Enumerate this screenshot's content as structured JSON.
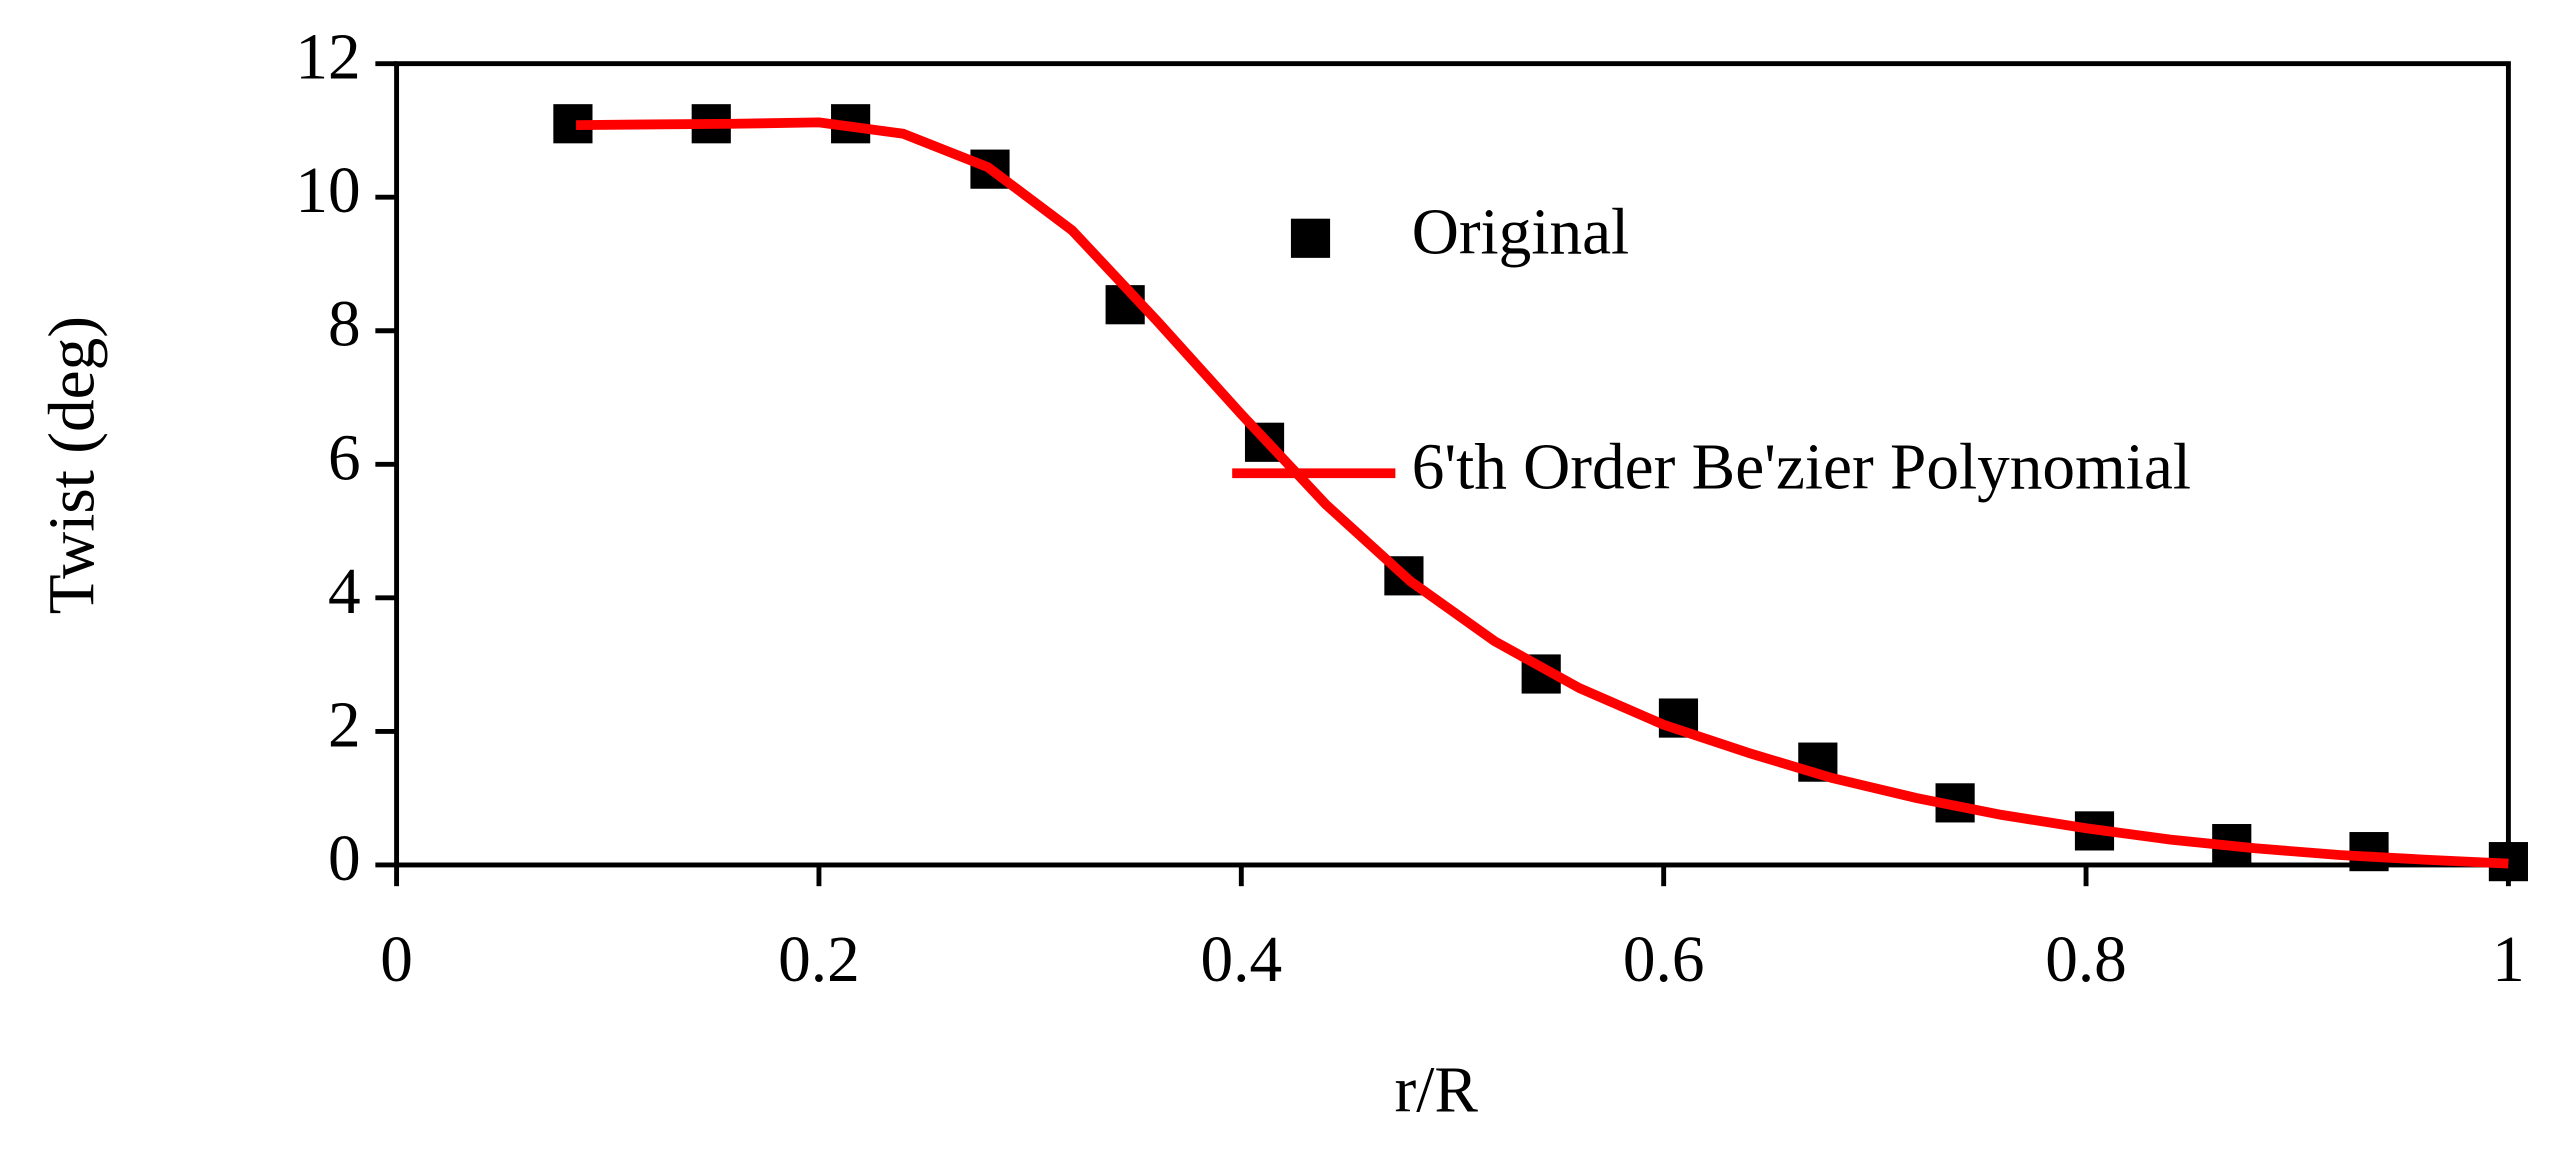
{
  "chart_data": {
    "type": "line",
    "xlabel": "r/R",
    "ylabel": "Twist (deg)",
    "xlim": [
      0,
      1
    ],
    "ylim": [
      0,
      12
    ],
    "xticks": [
      0,
      0.2,
      0.4,
      0.6,
      0.8,
      1
    ],
    "yticks": [
      0,
      2,
      4,
      6,
      8,
      10,
      12
    ],
    "series": [
      {
        "name": "Original",
        "color": "#000000",
        "marker": "square",
        "line": false,
        "x": [
          0.0835,
          0.149,
          0.215,
          0.281,
          0.345,
          0.411,
          0.477,
          0.542,
          0.607,
          0.673,
          0.738,
          0.804,
          0.869,
          0.934,
          1.0
        ],
        "values": [
          11.1,
          11.1,
          11.1,
          10.42,
          8.39,
          6.33,
          4.33,
          2.86,
          2.2,
          1.54,
          0.93,
          0.51,
          0.32,
          0.2,
          0.05
        ]
      },
      {
        "name": "6'th Order Be'zier Polynomial",
        "color": "#ff0000",
        "marker": "none",
        "line": true,
        "x": [
          0.085,
          0.12,
          0.16,
          0.2,
          0.24,
          0.28,
          0.32,
          0.36,
          0.4,
          0.44,
          0.48,
          0.52,
          0.56,
          0.6,
          0.64,
          0.68,
          0.72,
          0.76,
          0.8,
          0.84,
          0.88,
          0.92,
          0.96,
          1.0
        ],
        "values": [
          11.08,
          11.09,
          11.1,
          11.12,
          10.95,
          10.45,
          9.5,
          8.15,
          6.75,
          5.4,
          4.25,
          3.35,
          2.65,
          2.1,
          1.68,
          1.3,
          1.0,
          0.75,
          0.55,
          0.38,
          0.25,
          0.15,
          0.08,
          0.02
        ]
      }
    ]
  }
}
